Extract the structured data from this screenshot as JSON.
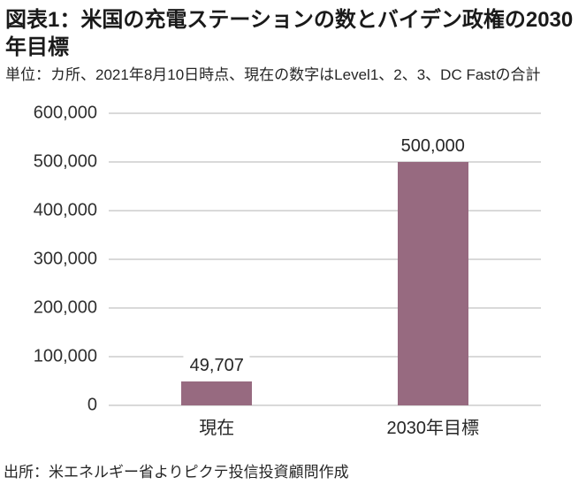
{
  "header": {
    "title": "図表1：米国の充電ステーションの数とバイデン政権の2030年目標",
    "subtitle": "単位：カ所、2021年8月10日時点、現在の数字はLevel1、2、3、DC Fastの合計"
  },
  "source": {
    "text": "出所：米エネルギー省よりピクテ投信投資顧問作成"
  },
  "chart_data": {
    "type": "bar",
    "title": "図表1：米国の充電ステーションの数とバイデン政権の2030年目標",
    "subtitle": "単位：カ所、2021年8月10日時点、現在の数字はLevel1、2、3、DC Fastの合計",
    "categories": [
      "現在",
      "2030年目標"
    ],
    "values": [
      49707,
      500000
    ],
    "value_labels": [
      "49,707",
      "500,000"
    ],
    "xlabel": "",
    "ylabel": "",
    "ylim": [
      0,
      600000
    ],
    "ytick_interval": 100000,
    "ytick_labels": [
      "0",
      "100,000",
      "200,000",
      "300,000",
      "400,000",
      "500,000",
      "600,000"
    ],
    "grid": true,
    "legend": "none",
    "bar_color": "#976a80",
    "gridline_color": "#d9d9d9",
    "source": "出所：米エネルギー省よりピクテ投信投資顧問作成"
  }
}
